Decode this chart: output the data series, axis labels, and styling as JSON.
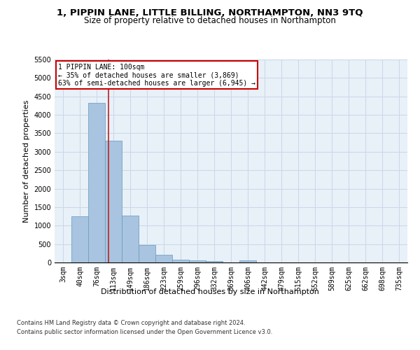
{
  "title": "1, PIPPIN LANE, LITTLE BILLING, NORTHAMPTON, NN3 9TQ",
  "subtitle": "Size of property relative to detached houses in Northampton",
  "xlabel": "Distribution of detached houses by size in Northampton",
  "ylabel": "Number of detached properties",
  "categories": [
    "3sqm",
    "40sqm",
    "76sqm",
    "113sqm",
    "149sqm",
    "186sqm",
    "223sqm",
    "259sqm",
    "296sqm",
    "332sqm",
    "369sqm",
    "406sqm",
    "442sqm",
    "479sqm",
    "515sqm",
    "552sqm",
    "589sqm",
    "625sqm",
    "662sqm",
    "698sqm",
    "735sqm"
  ],
  "values": [
    0,
    1255,
    4330,
    3300,
    1270,
    480,
    215,
    75,
    60,
    35,
    0,
    55,
    0,
    0,
    0,
    0,
    0,
    0,
    0,
    0,
    0
  ],
  "bar_color": "#a8c4e0",
  "bar_edge_color": "#6699bb",
  "red_line_x": 2.72,
  "annotation_text": "1 PIPPIN LANE: 100sqm\n← 35% of detached houses are smaller (3,869)\n63% of semi-detached houses are larger (6,945) →",
  "annotation_box_color": "#ffffff",
  "annotation_box_edge_color": "#cc0000",
  "ylim": [
    0,
    5500
  ],
  "yticks": [
    0,
    500,
    1000,
    1500,
    2000,
    2500,
    3000,
    3500,
    4000,
    4500,
    5000,
    5500
  ],
  "grid_color": "#c8d8e8",
  "background_color": "#e8f0f8",
  "footer_line1": "Contains HM Land Registry data © Crown copyright and database right 2024.",
  "footer_line2": "Contains public sector information licensed under the Open Government Licence v3.0.",
  "title_fontsize": 9.5,
  "subtitle_fontsize": 8.5,
  "axis_label_fontsize": 8,
  "tick_fontsize": 7,
  "ylabel_fontsize": 8,
  "footer_fontsize": 6
}
